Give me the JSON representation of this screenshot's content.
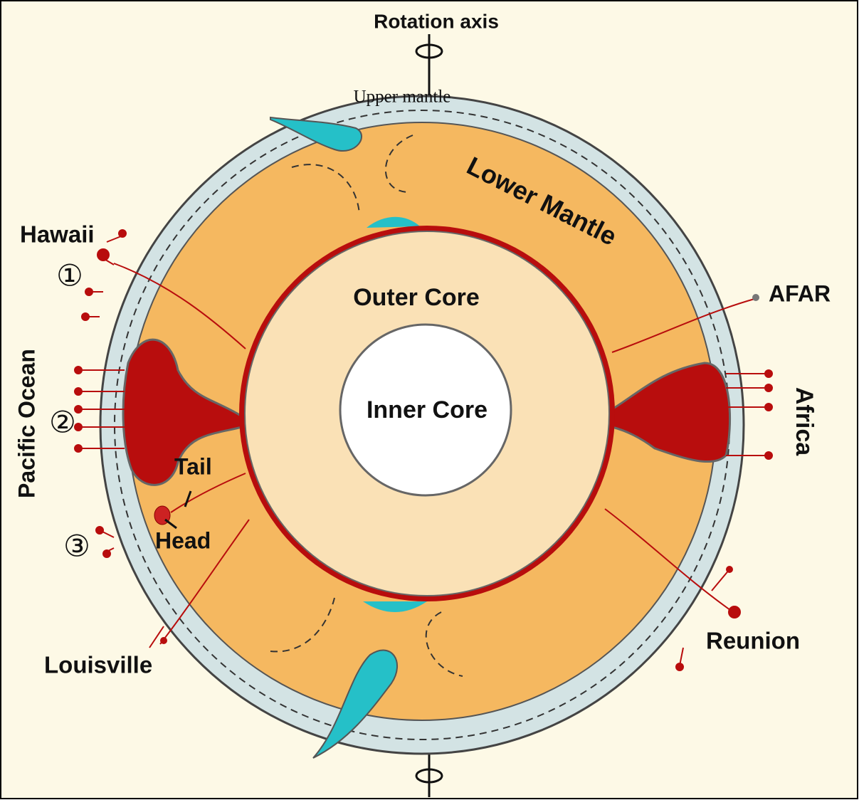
{
  "labels": {
    "rotation_axis": "Rotation axis",
    "upper_mantle": "Upper mantle",
    "lower_mantle": "Lower Mantle",
    "outer_core": "Outer Core",
    "inner_core": "Inner Core",
    "hawaii": "Hawaii",
    "marker_1": "①",
    "marker_2": "②",
    "marker_3": "③",
    "pacific_ocean": "Pacific Ocean",
    "tail": "Tail",
    "head": "Head",
    "louisville": "Louisville",
    "afar": "AFAR",
    "africa": "Africa",
    "reunion": "Reunion"
  }
}
